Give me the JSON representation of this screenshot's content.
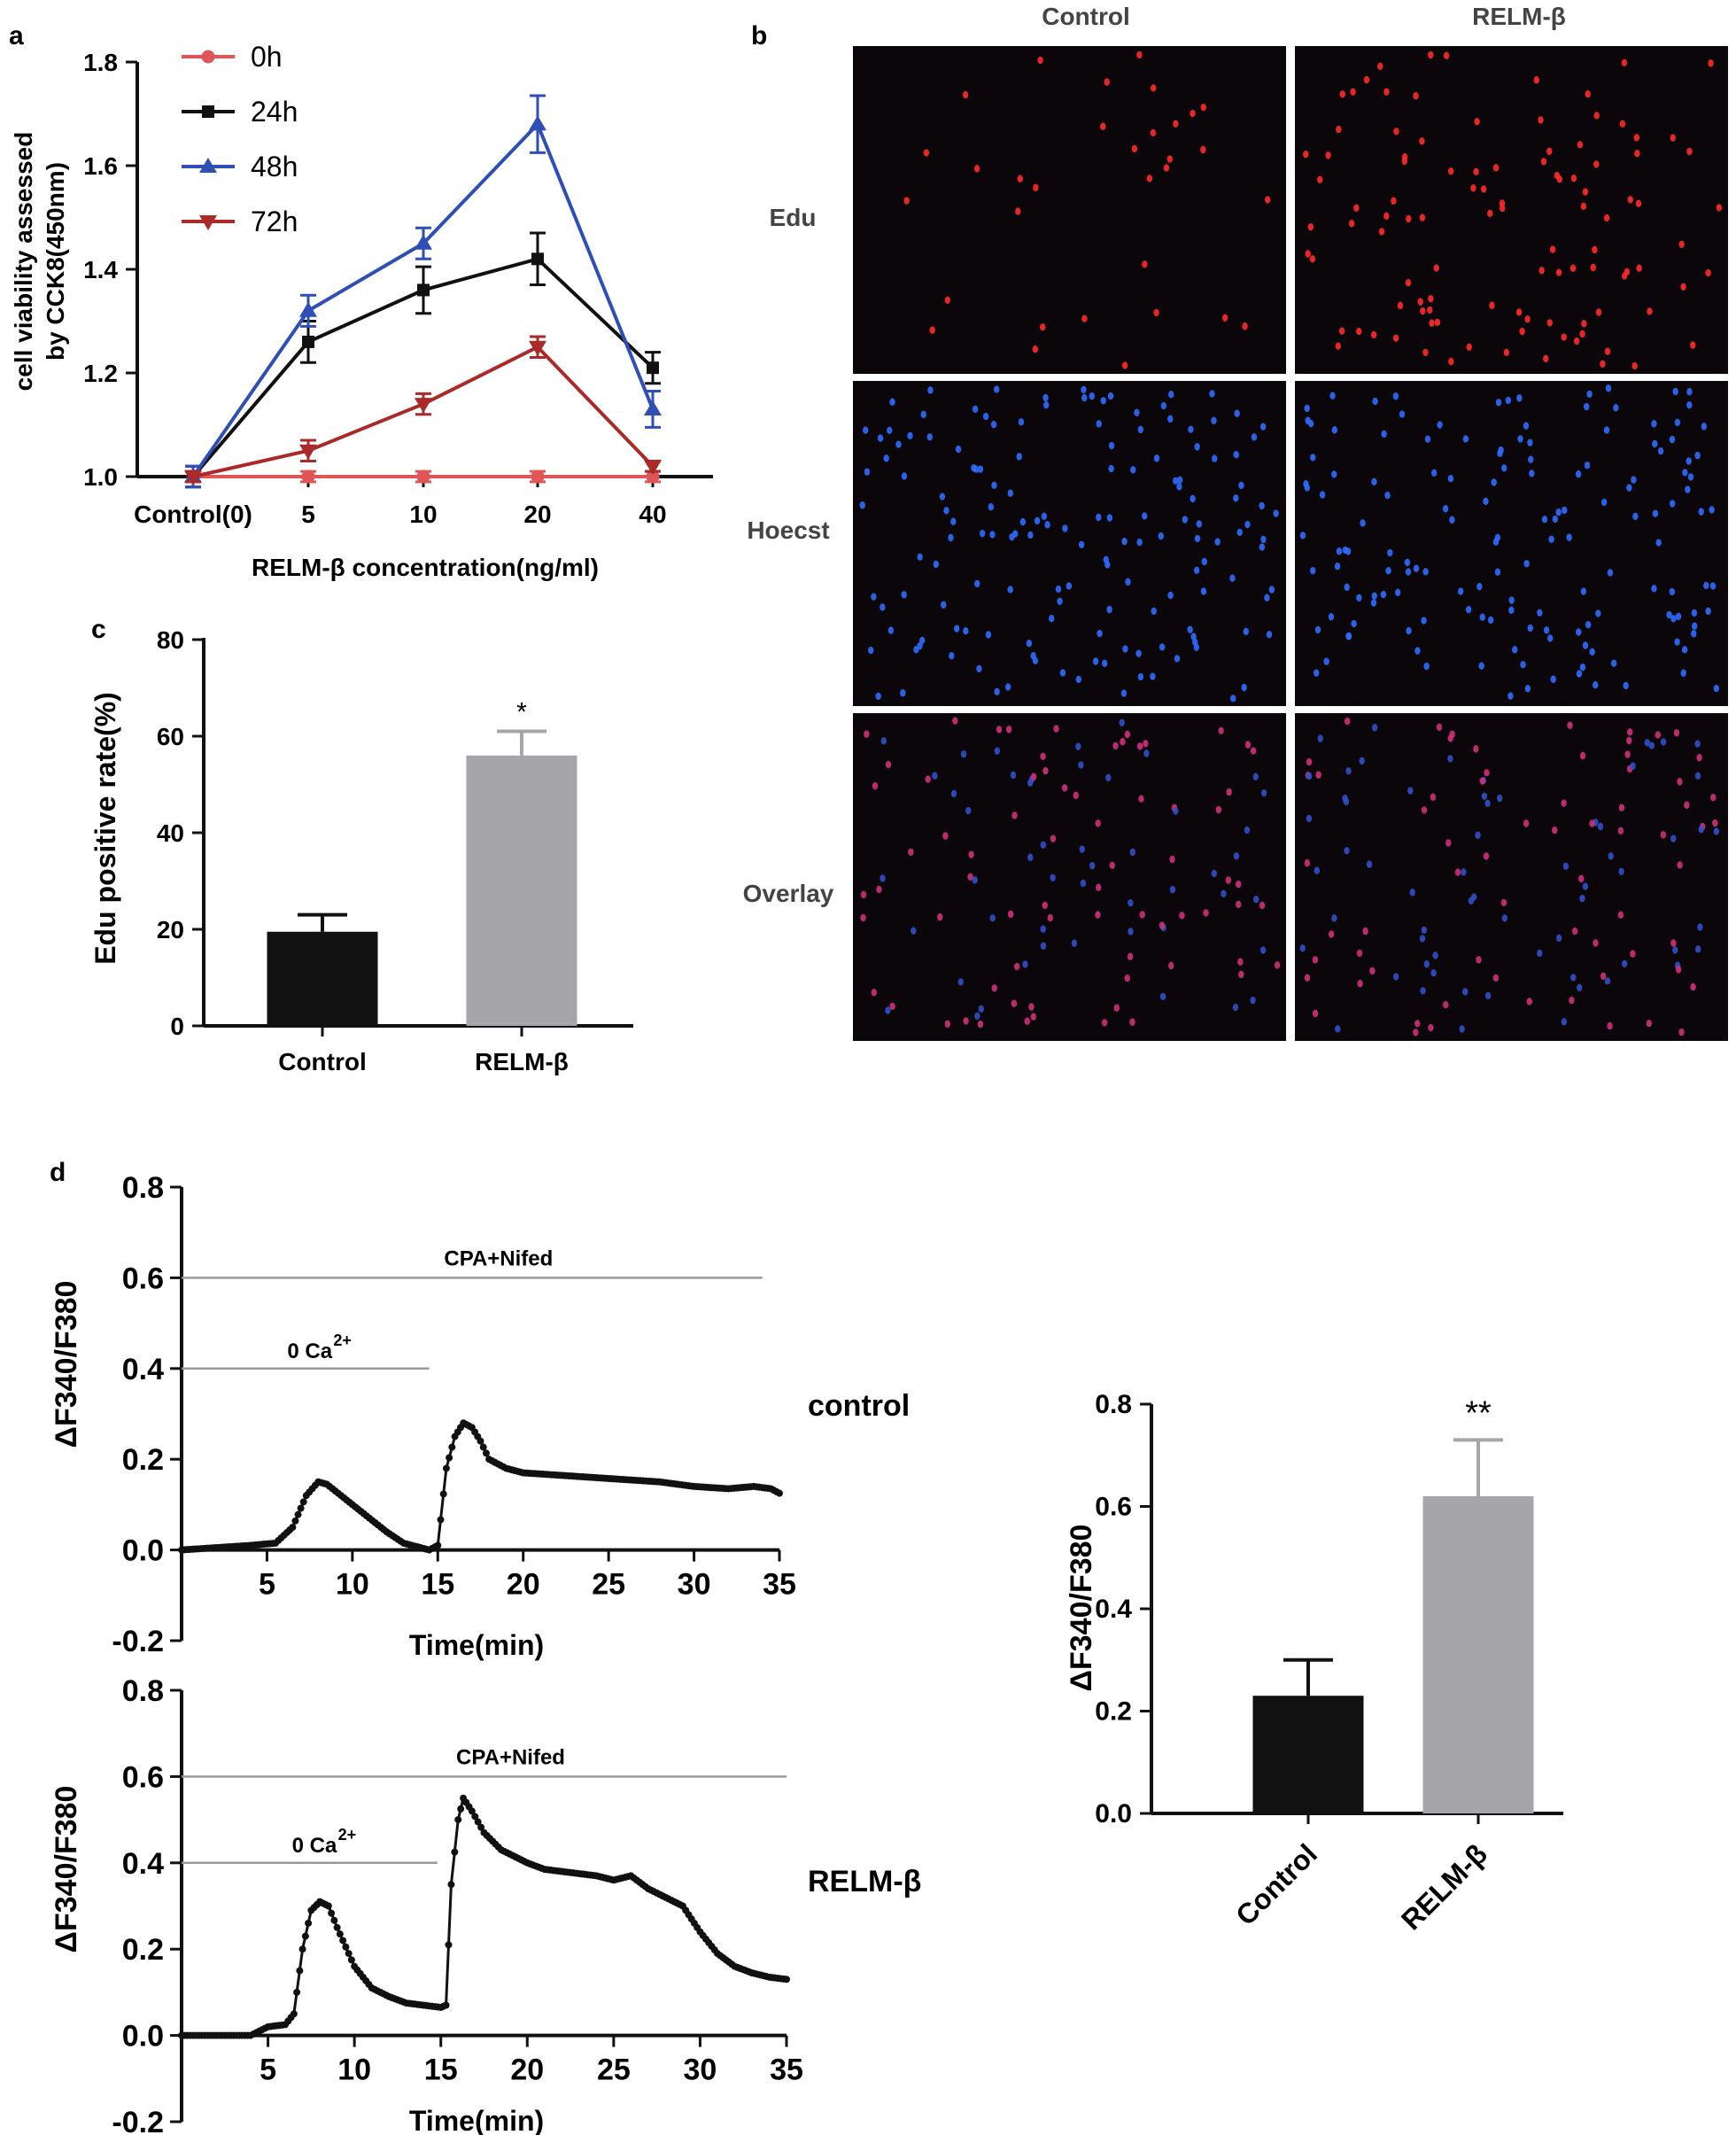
{
  "colors": {
    "red": "#e05555",
    "black": "#111111",
    "blue": "#2f4fb5",
    "darkred": "#aa2a2a",
    "gray_bar": "#a6a6aa",
    "black_bar": "#111111",
    "panel_bg": "#0a060a",
    "edu_dot": "#ff2a2a",
    "hoechst_dot": "#2f6cff",
    "overlay_dot": "#d0307a",
    "trace": "#111111",
    "guide": "#999999"
  },
  "panel_letters": {
    "a": "a",
    "b": "b",
    "c": "c",
    "d": "d"
  },
  "images": {
    "col_labels": [
      "Control",
      "RELM-β"
    ],
    "row_labels": [
      "Edu",
      "Hoecst",
      "Overlay"
    ]
  },
  "chart_data": [
    {
      "id": "a",
      "type": "line",
      "ylabel_lines": [
        "cell viability assessed",
        "by CCK8(450nm)"
      ],
      "xlabel": "RELM-β concentration(ng/ml)",
      "categories": [
        "Control(0)",
        "5",
        "10",
        "20",
        "40"
      ],
      "ylim": [
        1.0,
        1.8
      ],
      "yticks": [
        "1.0",
        "1.2",
        "1.4",
        "1.6",
        "1.8"
      ],
      "legend_position": "top-left",
      "series": [
        {
          "name": "0h",
          "marker": "circle",
          "color": "#e05555",
          "values": [
            1.0,
            1.0,
            1.0,
            1.0,
            1.0
          ],
          "err": [
            0.01,
            0.01,
            0.01,
            0.01,
            0.01
          ]
        },
        {
          "name": "24h",
          "marker": "square",
          "color": "#111111",
          "values": [
            1.0,
            1.26,
            1.36,
            1.42,
            1.21
          ],
          "err": [
            0.02,
            0.04,
            0.045,
            0.05,
            0.03
          ]
        },
        {
          "name": "48h",
          "marker": "triangle-up",
          "color": "#2f4fb5",
          "values": [
            1.0,
            1.32,
            1.45,
            1.68,
            1.13
          ],
          "err": [
            0.02,
            0.03,
            0.03,
            0.055,
            0.035
          ]
        },
        {
          "name": "72h",
          "marker": "triangle-down",
          "color": "#aa2a2a",
          "values": [
            1.0,
            1.05,
            1.14,
            1.25,
            1.02
          ],
          "err": [
            0.01,
            0.02,
            0.02,
            0.02,
            0.01
          ]
        }
      ]
    },
    {
      "id": "c",
      "type": "bar",
      "ylabel": "Edu positive rate(%)",
      "categories": [
        "Control",
        "RELM-β"
      ],
      "values": [
        19.5,
        56
      ],
      "err": [
        3.5,
        5
      ],
      "ylim": [
        0,
        80
      ],
      "yticks": [
        "0",
        "20",
        "40",
        "60",
        "80"
      ],
      "annotations": [
        "",
        "*"
      ]
    },
    {
      "id": "d-control",
      "type": "line",
      "ylabel": "ΔF340/F380",
      "xlabel": "Time(min)",
      "label": "control",
      "ylim": [
        -0.2,
        0.8
      ],
      "yticks": [
        "-0.2",
        "0.0",
        "0.2",
        "0.4",
        "0.6",
        "0.8"
      ],
      "xlim": [
        0,
        35
      ],
      "xticks": [
        "5",
        "10",
        "15",
        "20",
        "25",
        "30",
        "35"
      ],
      "cpa_label": "CPA+Nifed",
      "cpa_range": [
        0,
        34
      ],
      "cpa_level": 0.6,
      "ca_label": "0 Ca",
      "ca_sup": "2+",
      "ca_range": [
        0,
        14.5
      ],
      "ca_level": 0.4,
      "x": [
        0,
        2,
        4,
        5.5,
        6.5,
        7.3,
        8,
        8.5,
        9,
        10,
        11,
        12,
        13,
        14,
        14.5,
        15,
        15.5,
        16,
        16.5,
        17,
        17.5,
        18,
        19,
        20,
        22,
        24,
        26,
        28,
        30,
        32,
        33.5,
        34.5,
        35
      ],
      "y": [
        0.0,
        0.005,
        0.01,
        0.015,
        0.05,
        0.12,
        0.15,
        0.145,
        0.13,
        0.1,
        0.07,
        0.04,
        0.015,
        0.005,
        0.0,
        0.01,
        0.18,
        0.25,
        0.28,
        0.27,
        0.24,
        0.2,
        0.18,
        0.17,
        0.165,
        0.16,
        0.155,
        0.15,
        0.14,
        0.135,
        0.14,
        0.135,
        0.125
      ]
    },
    {
      "id": "d-relm",
      "type": "line",
      "ylabel": "ΔF340/F380",
      "xlabel": "Time(min)",
      "label": "RELM-β",
      "ylim": [
        -0.2,
        0.8
      ],
      "yticks": [
        "-0.2",
        "0.0",
        "0.2",
        "0.4",
        "0.6",
        "0.8"
      ],
      "xlim": [
        0,
        35
      ],
      "xticks": [
        "5",
        "10",
        "15",
        "20",
        "25",
        "30",
        "35"
      ],
      "cpa_label": "CPA+Nifed",
      "cpa_range": [
        0,
        35
      ],
      "cpa_level": 0.6,
      "ca_label": "0 Ca",
      "ca_sup": "2+",
      "ca_range": [
        0,
        14.8
      ],
      "ca_level": 0.4,
      "x": [
        0,
        2,
        4,
        4.5,
        5,
        6,
        6.5,
        7,
        7.5,
        8,
        8.5,
        9,
        10,
        11,
        12,
        13,
        14,
        15,
        15.3,
        15.6,
        16,
        16.3,
        16.8,
        17.5,
        18.5,
        20,
        21,
        22,
        23,
        24,
        25,
        26,
        27,
        28,
        29,
        30,
        31,
        32,
        33,
        34,
        35
      ],
      "y": [
        0.0,
        0.0,
        0.0,
        0.01,
        0.02,
        0.025,
        0.05,
        0.2,
        0.29,
        0.31,
        0.3,
        0.25,
        0.16,
        0.11,
        0.09,
        0.075,
        0.07,
        0.065,
        0.07,
        0.35,
        0.5,
        0.55,
        0.52,
        0.47,
        0.43,
        0.4,
        0.385,
        0.38,
        0.375,
        0.37,
        0.36,
        0.37,
        0.34,
        0.32,
        0.3,
        0.24,
        0.19,
        0.16,
        0.145,
        0.135,
        0.13
      ]
    },
    {
      "id": "d-bar",
      "type": "bar",
      "ylabel": "ΔF340/F380",
      "categories": [
        "Control",
        "RELM-β"
      ],
      "values": [
        0.23,
        0.62
      ],
      "err": [
        0.07,
        0.11
      ],
      "ylim": [
        0.0,
        0.8
      ],
      "yticks": [
        "0.0",
        "0.2",
        "0.4",
        "0.6",
        "0.8"
      ],
      "annotations": [
        "",
        "**"
      ]
    }
  ]
}
